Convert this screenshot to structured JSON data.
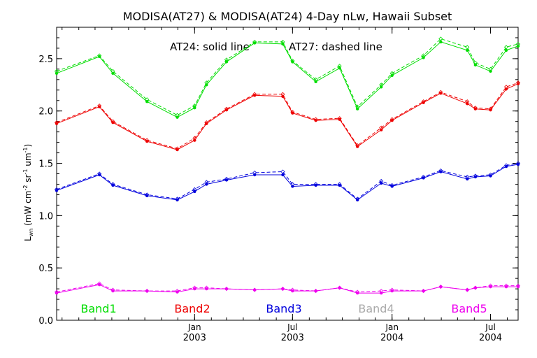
{
  "chart_data": {
    "type": "line",
    "title": "MODISA(AT27) & MODISA(AT24) 4-Day nLw, Hawaii Subset",
    "annotation": {
      "left": "AT24: solid line",
      "right": "AT27: dashed line"
    },
    "ylabel": "L_wn (mW cm^-2 sr^-1 um^-1)",
    "ylabel_parts": {
      "main": "L",
      "sub": "wn",
      "pre": " (mW cm",
      "e1": "-2",
      "mid1": " sr",
      "e2": "-1",
      "mid2": " um",
      "e3": "-1",
      "post": ")"
    },
    "xlim": [
      "2002-04-21",
      "2004-08-21"
    ],
    "ylim": [
      0.0,
      2.8
    ],
    "yticks": [
      "0.0",
      "0.5",
      "1.0",
      "1.5",
      "2.0",
      "2.5"
    ],
    "xticks": [
      {
        "date": "2003-01-01",
        "top": "Jan",
        "bottom": "2003"
      },
      {
        "date": "2003-07-01",
        "top": "Jul",
        "bottom": "2003"
      },
      {
        "date": "2004-01-01",
        "top": "Jan",
        "bottom": "2004"
      },
      {
        "date": "2004-07-01",
        "top": "Jul",
        "bottom": "2004"
      }
    ],
    "x": [
      "2002-04-21",
      "2002-07-09",
      "2002-08-03",
      "2002-10-05",
      "2002-11-30",
      "2003-01-01",
      "2003-01-23",
      "2003-03-01",
      "2003-04-22",
      "2003-06-13",
      "2003-07-01",
      "2003-08-13",
      "2003-09-26",
      "2003-10-29",
      "2003-12-12",
      "2004-01-01",
      "2004-02-28",
      "2004-03-31",
      "2004-05-19",
      "2004-06-03",
      "2004-07-01",
      "2004-07-30",
      "2004-08-21"
    ],
    "series": [
      {
        "name": "Band1",
        "color": "#00dd00",
        "AT24": [
          2.36,
          2.52,
          2.36,
          2.09,
          1.94,
          2.03,
          2.25,
          2.47,
          2.65,
          2.64,
          2.47,
          2.28,
          2.41,
          2.02,
          2.23,
          2.34,
          2.51,
          2.66,
          2.58,
          2.44,
          2.38,
          2.58,
          2.62
        ],
        "AT27": [
          2.38,
          2.53,
          2.38,
          2.11,
          1.96,
          2.05,
          2.27,
          2.49,
          2.66,
          2.66,
          2.48,
          2.3,
          2.43,
          2.04,
          2.25,
          2.36,
          2.53,
          2.69,
          2.61,
          2.46,
          2.4,
          2.61,
          2.64
        ]
      },
      {
        "name": "Band2",
        "color": "#ee0000",
        "AT24": [
          1.88,
          2.04,
          1.89,
          1.71,
          1.63,
          1.72,
          1.88,
          2.01,
          2.15,
          2.14,
          1.98,
          1.91,
          1.92,
          1.66,
          1.82,
          1.91,
          2.08,
          2.17,
          2.07,
          2.02,
          2.01,
          2.21,
          2.26
        ],
        "AT27": [
          1.89,
          2.05,
          1.9,
          1.72,
          1.64,
          1.74,
          1.89,
          2.02,
          2.16,
          2.16,
          1.99,
          1.92,
          1.93,
          1.67,
          1.84,
          1.92,
          2.09,
          2.18,
          2.09,
          2.03,
          2.02,
          2.23,
          2.27
        ]
      },
      {
        "name": "Band3",
        "color": "#0000dd",
        "AT24": [
          1.24,
          1.39,
          1.29,
          1.19,
          1.15,
          1.23,
          1.3,
          1.34,
          1.39,
          1.39,
          1.28,
          1.29,
          1.29,
          1.15,
          1.31,
          1.28,
          1.36,
          1.42,
          1.35,
          1.37,
          1.38,
          1.47,
          1.49
        ],
        "AT27": [
          1.25,
          1.4,
          1.3,
          1.2,
          1.16,
          1.25,
          1.32,
          1.35,
          1.41,
          1.42,
          1.3,
          1.3,
          1.3,
          1.16,
          1.33,
          1.29,
          1.37,
          1.43,
          1.37,
          1.38,
          1.39,
          1.48,
          1.5
        ]
      },
      {
        "name": "Band4",
        "color": "#aaaaaa",
        "AT24": [],
        "AT27": []
      },
      {
        "name": "Band5",
        "color": "#ee00ee",
        "AT24": [
          0.26,
          0.34,
          0.28,
          0.28,
          0.27,
          0.3,
          0.3,
          0.3,
          0.29,
          0.3,
          0.28,
          0.28,
          0.31,
          0.26,
          0.26,
          0.28,
          0.28,
          0.32,
          0.29,
          0.31,
          0.32,
          0.32,
          0.32
        ],
        "AT27": [
          0.27,
          0.35,
          0.29,
          0.28,
          0.28,
          0.31,
          0.31,
          0.3,
          0.29,
          0.3,
          0.29,
          0.28,
          0.31,
          0.27,
          0.28,
          0.29,
          0.28,
          0.32,
          0.29,
          0.31,
          0.33,
          0.33,
          0.33
        ]
      }
    ]
  }
}
